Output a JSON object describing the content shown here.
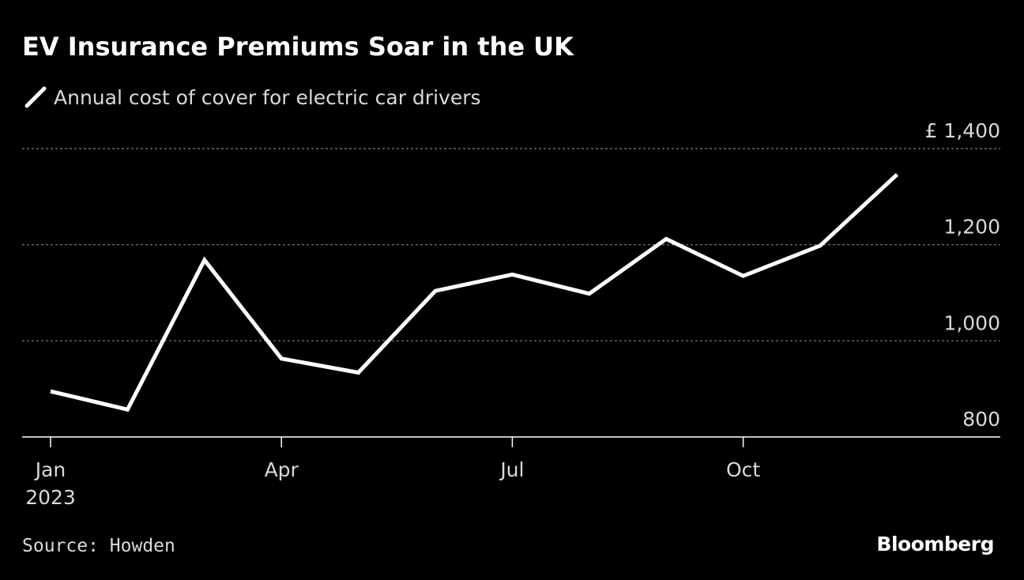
{
  "chart_data": {
    "type": "line",
    "title": "EV Insurance Premiums Soar in the UK",
    "x": [
      "2023-01",
      "2023-02",
      "2023-03",
      "2023-04",
      "2023-05",
      "2023-06",
      "2023-07",
      "2023-08",
      "2023-09",
      "2023-10",
      "2023-11",
      "2023-12"
    ],
    "series": [
      {
        "name": "Annual cost of cover for electric car drivers",
        "values": [
          895,
          857,
          1168,
          963,
          934,
          1104,
          1138,
          1098,
          1212,
          1135,
          1198,
          1346
        ]
      }
    ],
    "ylim": [
      800,
      1400
    ],
    "yticks": [
      800,
      1000,
      1200,
      1400
    ],
    "ytick_labels": [
      "800",
      "1,000",
      "1,200",
      "£ 1,400"
    ],
    "xticks": [
      {
        "month_index": 0,
        "label": "Jan",
        "sublabel": "2023"
      },
      {
        "month_index": 3,
        "label": "Apr",
        "sublabel": ""
      },
      {
        "month_index": 6,
        "label": "Jul",
        "sublabel": ""
      },
      {
        "month_index": 9,
        "label": "Oct",
        "sublabel": ""
      }
    ],
    "xlabel": "",
    "ylabel": "",
    "grid": true,
    "source": "Source: Howden",
    "brand": "Bloomberg",
    "colors": {
      "background": "#000000",
      "line": "#ffffff",
      "grid": "#7f7f7f",
      "text": "#d9d9d9"
    }
  }
}
